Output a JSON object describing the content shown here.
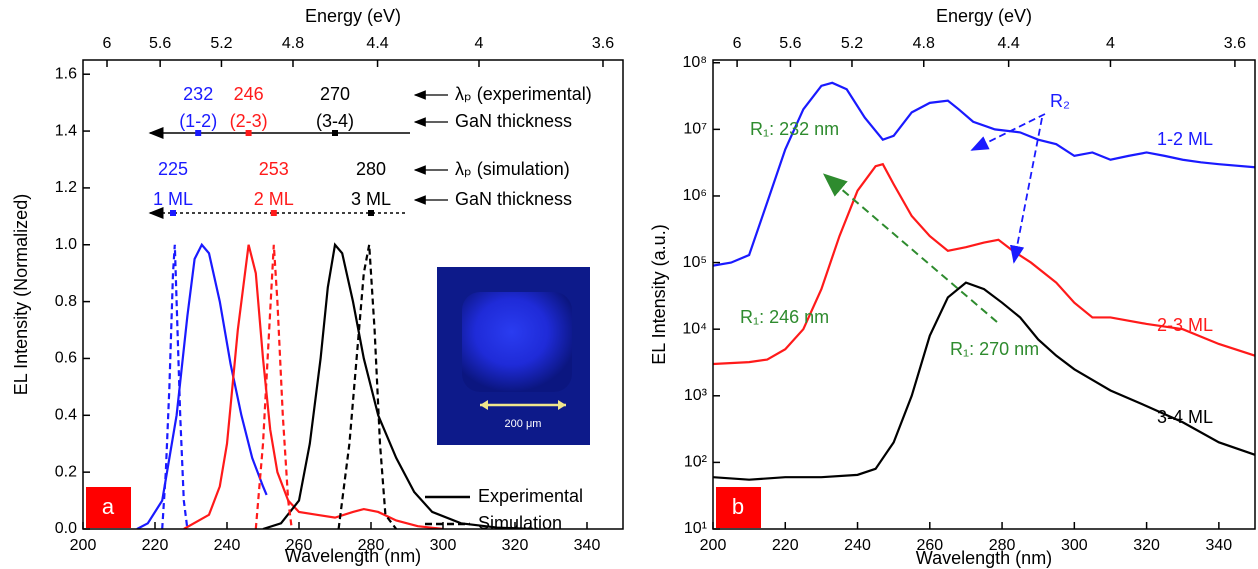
{
  "chart_data": [
    {
      "type": "line",
      "panel_label": "a",
      "xlabel": "Wavelength (nm)",
      "ylabel": "EL Intensity (Normalized)",
      "x2label": "Energy (eV)",
      "xlim": [
        200,
        350
      ],
      "xticks": [
        200,
        220,
        240,
        260,
        280,
        300,
        320,
        340
      ],
      "ylim": [
        0,
        1.65
      ],
      "yticks": [
        {
          "value": 0,
          "label": "0.0"
        },
        0.2,
        0.4,
        0.6,
        0.8,
        {
          "value": 1,
          "label": "1.0"
        },
        1.2,
        1.4,
        1.6
      ],
      "x2ticks": [
        {
          "value": 206.67,
          "label": "6"
        },
        {
          "value": 221.43,
          "label": "5.6"
        },
        {
          "value": 238.46,
          "label": "5.2"
        },
        {
          "value": 258.33,
          "label": "4.8"
        },
        {
          "value": 281.82,
          "label": "4.4"
        },
        {
          "value": 310,
          "label": "4"
        },
        {
          "value": 344.44,
          "label": "3.6"
        }
      ],
      "series": [
        {
          "color": "#1a1aff",
          "dash": "solid",
          "x": [
            215,
            218,
            222,
            226,
            229,
            231,
            233,
            235,
            238,
            241,
            244,
            247,
            250,
            251
          ],
          "values": [
            0,
            0.02,
            0.1,
            0.4,
            0.75,
            0.95,
            1.0,
            0.97,
            0.8,
            0.58,
            0.4,
            0.25,
            0.15,
            0.12
          ]
        },
        {
          "color": "#ff1a1a",
          "dash": "solid",
          "x": [
            228,
            235,
            238,
            240,
            243,
            246,
            248,
            250,
            252,
            254,
            257,
            260,
            265,
            270,
            275,
            278,
            282,
            287,
            293,
            300
          ],
          "values": [
            0,
            0.05,
            0.15,
            0.3,
            0.7,
            1.0,
            0.9,
            0.6,
            0.35,
            0.2,
            0.1,
            0.06,
            0.05,
            0.04,
            0.06,
            0.07,
            0.06,
            0.03,
            0.01,
            0
          ]
        },
        {
          "color": "#000000",
          "dash": "solid",
          "x": [
            250,
            255,
            260,
            263,
            266,
            268,
            270,
            272,
            275,
            278,
            282,
            287,
            292,
            297,
            305,
            315,
            325
          ],
          "values": [
            0,
            0.02,
            0.1,
            0.3,
            0.6,
            0.85,
            1.0,
            0.97,
            0.8,
            0.6,
            0.4,
            0.25,
            0.13,
            0.06,
            0.02,
            0.005,
            0
          ]
        },
        {
          "color": "#1a1aff",
          "dash": "dashed",
          "x": [
            222,
            223,
            224,
            225,
            225.5,
            226,
            227,
            228,
            229
          ],
          "values": [
            0,
            0.2,
            0.5,
            0.9,
            1.0,
            0.8,
            0.4,
            0.1,
            0
          ]
        },
        {
          "color": "#ff1a1a",
          "dash": "dashed",
          "x": [
            248,
            250,
            251.5,
            253,
            254,
            255.5,
            257,
            258
          ],
          "values": [
            0,
            0.3,
            0.65,
            1.0,
            0.8,
            0.4,
            0.1,
            0
          ]
        },
        {
          "color": "#000000",
          "dash": "dashed",
          "x": [
            271,
            274,
            276,
            278,
            279.5,
            281,
            282.5,
            284,
            287
          ],
          "values": [
            0,
            0.3,
            0.6,
            0.9,
            1.0,
            0.7,
            0.3,
            0.05,
            0
          ]
        }
      ],
      "legend": [
        {
          "label": "Experimental",
          "dash": "solid"
        },
        {
          "label": "Simulation",
          "dash": "dashed"
        }
      ],
      "peaks_experimental": [
        232,
        246,
        270
      ],
      "thickness_experimental": [
        "(1-2)",
        "(2-3)",
        "(3-4)"
      ],
      "peaks_simulation": [
        225,
        253,
        280
      ],
      "thickness_simulation": [
        "1 ML",
        "2 ML",
        "3 ML"
      ],
      "annotations": [
        "λₚ (experimental)",
        "GaN thickness",
        "λₚ (simulation)",
        "GaN thickness"
      ],
      "inset_label": "200 μm"
    },
    {
      "type": "line",
      "panel_label": "b",
      "yscale": "log",
      "xlabel": "Wavelength (nm)",
      "ylabel": "EL Intensity (a.u.)",
      "x2label": "Energy (eV)",
      "xlim": [
        200,
        350
      ],
      "xticks": [
        200,
        220,
        240,
        260,
        280,
        300,
        320,
        340
      ],
      "ylim": [
        10,
        110000000
      ],
      "yticks": [
        {
          "value": 10,
          "label": "10¹"
        },
        {
          "value": 100,
          "label": "10²"
        },
        {
          "value": 1000,
          "label": "10³"
        },
        {
          "value": 10000,
          "label": "10⁴"
        },
        {
          "value": 100000,
          "label": "10⁵"
        },
        {
          "value": 1000000,
          "label": "10⁶"
        },
        {
          "value": 10000000,
          "label": "10⁷"
        },
        {
          "value": 100000000,
          "label": "10⁸"
        }
      ],
      "x2ticks": [
        {
          "value": 206.67,
          "label": "6"
        },
        {
          "value": 221.43,
          "label": "5.6"
        },
        {
          "value": 238.46,
          "label": "5.2"
        },
        {
          "value": 258.33,
          "label": "4.8"
        },
        {
          "value": 281.82,
          "label": "4.4"
        },
        {
          "value": 310,
          "label": "4"
        },
        {
          "value": 344.44,
          "label": "3.6"
        }
      ],
      "series": [
        {
          "name": "1-2 ML",
          "color": "#1a1aff",
          "dash": "solid",
          "x": [
            200,
            205,
            210,
            215,
            220,
            225,
            230,
            233,
            237,
            242,
            247,
            250,
            255,
            260,
            265,
            268,
            272,
            278,
            285,
            290,
            295,
            300,
            305,
            310,
            315,
            320,
            325,
            330,
            335,
            340,
            350
          ],
          "values": [
            90000,
            100000,
            130000,
            800000,
            5000000,
            20000000,
            45000000,
            50000000,
            40000000,
            15000000,
            7000000,
            8000000,
            18000000,
            25000000,
            27000000,
            20000000,
            13000000,
            10000000,
            9000000,
            7000000,
            6000000,
            4000000,
            4500000,
            3500000,
            4000000,
            4500000,
            4000000,
            3500000,
            3200000,
            3000000,
            2700000
          ]
        },
        {
          "name": "2-3 ML",
          "color": "#ff1a1a",
          "dash": "solid",
          "x": [
            200,
            210,
            215,
            220,
            225,
            230,
            235,
            240,
            245,
            247,
            250,
            255,
            260,
            265,
            270,
            275,
            279,
            283,
            288,
            295,
            300,
            305,
            310,
            320,
            330,
            340,
            350
          ],
          "values": [
            3000,
            3200,
            3500,
            5000,
            10000,
            40000,
            250000,
            1200000,
            2800000,
            3000000,
            1500000,
            500000,
            250000,
            150000,
            170000,
            200000,
            220000,
            150000,
            100000,
            50000,
            25000,
            15000,
            15000,
            12000,
            10000,
            6000,
            4000
          ]
        },
        {
          "name": "3-4 ML",
          "color": "#000000",
          "dash": "solid",
          "x": [
            200,
            210,
            220,
            230,
            240,
            245,
            250,
            255,
            260,
            265,
            270,
            275,
            280,
            285,
            290,
            295,
            300,
            310,
            320,
            330,
            340,
            350
          ],
          "values": [
            60,
            55,
            60,
            60,
            65,
            80,
            200,
            1000,
            8000,
            30000,
            50000,
            40000,
            25000,
            15000,
            7000,
            4000,
            2500,
            1200,
            700,
            400,
            200,
            130
          ]
        }
      ],
      "annotations": [
        "R₁: 232 nm",
        "R₁: 246 nm",
        "R₁: 270 nm",
        "R₂"
      ]
    }
  ]
}
